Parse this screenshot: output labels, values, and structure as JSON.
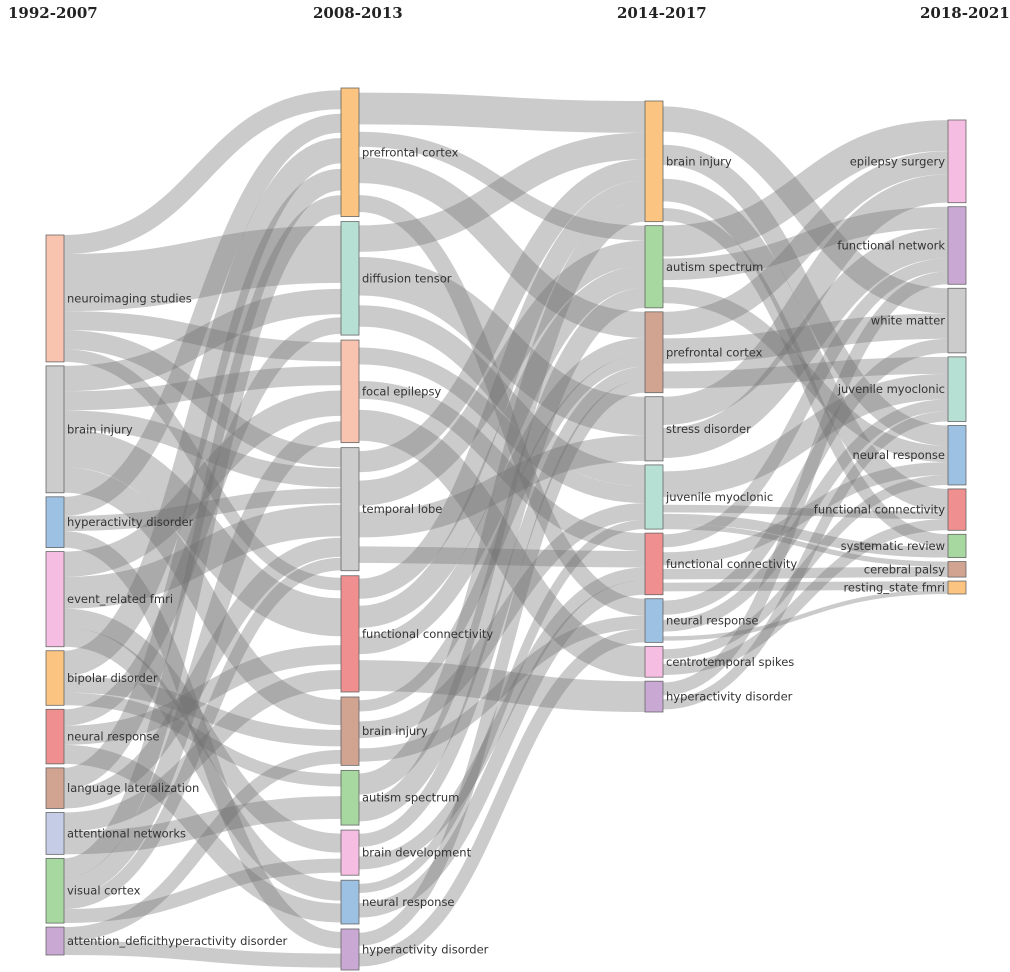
{
  "columns": [
    {
      "period": "1992-2007",
      "nodes": [
        {
          "id": "c0_neuroimaging_studies",
          "label": "neuroimaging studies",
          "size": 10,
          "color": "#f8c4b0"
        },
        {
          "id": "c0_brain_injury",
          "label": "brain injury",
          "size": 10,
          "color": "#cccccc"
        },
        {
          "id": "c0_hyperactivity_disorder",
          "label": "hyperactivity disorder",
          "size": 4,
          "color": "#9cc1e2"
        },
        {
          "id": "c0_event_related_fmri",
          "label": "event_related fmri",
          "size": 7.5,
          "color": "#f6bde2"
        },
        {
          "id": "c0_bipolar_disorder",
          "label": "bipolar disorder",
          "size": 4.3,
          "color": "#fbc480"
        },
        {
          "id": "c0_neural_response",
          "label": "neural response",
          "size": 4.3,
          "color": "#ef8f8f"
        },
        {
          "id": "c0_language_lateralization",
          "label": "language lateralization",
          "size": 3.2,
          "color": "#d1a391"
        },
        {
          "id": "c0_attentional_networks",
          "label": "attentional networks",
          "size": 3.3,
          "color": "#c4cde5"
        },
        {
          "id": "c0_visual_cortex",
          "label": "visual cortex",
          "size": 5.1,
          "color": "#a6d8a0"
        },
        {
          "id": "c0_adhd",
          "label": "attention_deficithyperactivity disorder",
          "size": 2.2,
          "color": "#c9a9d4"
        }
      ]
    },
    {
      "period": "2008-2013",
      "nodes": [
        {
          "id": "c1_prefrontal_cortex",
          "label": "prefrontal cortex",
          "size": 9.4,
          "color": "#fbc480"
        },
        {
          "id": "c1_diffusion_tensor",
          "label": "diffusion tensor",
          "size": 8.3,
          "color": "#b6e0d3"
        },
        {
          "id": "c1_focal_epilepsy",
          "label": "focal epilepsy",
          "size": 7.5,
          "color": "#f8c4b0"
        },
        {
          "id": "c1_temporal_lobe",
          "label": "temporal lobe",
          "size": 9,
          "color": "#cccccc"
        },
        {
          "id": "c1_functional_connectivity",
          "label": "functional connectivity",
          "size": 8.5,
          "color": "#ef8f8f"
        },
        {
          "id": "c1_brain_injury",
          "label": "brain injury",
          "size": 5,
          "color": "#d1a391"
        },
        {
          "id": "c1_autism_spectrum",
          "label": "autism spectrum",
          "size": 4,
          "color": "#a6d8a0"
        },
        {
          "id": "c1_brain_development",
          "label": "brain development",
          "size": 3.3,
          "color": "#f6bde2"
        },
        {
          "id": "c1_neural_response",
          "label": "neural response",
          "size": 3.2,
          "color": "#9cc1e2"
        },
        {
          "id": "c1_hyperactivity_disorder",
          "label": "hyperactivity disorder",
          "size": 3,
          "color": "#c9a9d4"
        }
      ]
    },
    {
      "period": "2014-2017",
      "nodes": [
        {
          "id": "c2_brain_injury",
          "label": "brain injury",
          "size": 9.4,
          "color": "#fbc480"
        },
        {
          "id": "c2_autism_spectrum",
          "label": "autism spectrum",
          "size": 6.4,
          "color": "#a6d8a0"
        },
        {
          "id": "c2_prefrontal_cortex",
          "label": "prefrontal cortex",
          "size": 6.3,
          "color": "#d1a391"
        },
        {
          "id": "c2_stress_disorder",
          "label": "stress disorder",
          "size": 5,
          "color": "#cccccc"
        },
        {
          "id": "c2_juvenile_myoclonic",
          "label": "juvenile myoclonic",
          "size": 5,
          "color": "#b6e0d3"
        },
        {
          "id": "c2_functional_connectivity",
          "label": "functional connectivity",
          "size": 4.8,
          "color": "#ef8f8f"
        },
        {
          "id": "c2_neural_response",
          "label": "neural response",
          "size": 3.4,
          "color": "#9cc1e2"
        },
        {
          "id": "c2_centrotemporal_spikes",
          "label": "centrotemporal spikes",
          "size": 2.4,
          "color": "#f6bde2"
        },
        {
          "id": "c2_hyperactivity_disorder",
          "label": "hyperactivity disorder",
          "size": 2.4,
          "color": "#c9a9d4"
        }
      ]
    },
    {
      "period": "2018-2021",
      "nodes": [
        {
          "id": "c3_epilepsy_surgery",
          "label": "epilepsy surgery",
          "size": 6.4,
          "color": "#f6bde2"
        },
        {
          "id": "c3_functional_network",
          "label": "functional network",
          "size": 6,
          "color": "#c9a9d4"
        },
        {
          "id": "c3_white_matter",
          "label": "white matter",
          "size": 5,
          "color": "#cccccc"
        },
        {
          "id": "c3_juvenile_myoclonic",
          "label": "juvenile myoclonic",
          "size": 5,
          "color": "#b6e0d3"
        },
        {
          "id": "c3_neural_response",
          "label": "neural response",
          "size": 4.6,
          "color": "#9cc1e2"
        },
        {
          "id": "c3_functional_connectivity",
          "label": "functional connectivity",
          "size": 3.2,
          "color": "#ef8f8f"
        },
        {
          "id": "c3_systematic_review",
          "label": "systematic review",
          "size": 1.8,
          "color": "#a6d8a0"
        },
        {
          "id": "c3_cerebral_palsy",
          "label": "cerebral palsy",
          "size": 1.2,
          "color": "#d1a391"
        },
        {
          "id": "c3_resting_state_fmri",
          "label": "resting_state fmri",
          "size": 1,
          "color": "#fbc480"
        }
      ]
    }
  ],
  "links": [
    {
      "source": "c0_neuroimaging_studies",
      "target": "c1_diffusion_tensor",
      "value": 4.5
    },
    {
      "source": "c0_neuroimaging_studies",
      "target": "c1_prefrontal_cortex",
      "value": 1.5
    },
    {
      "source": "c0_neuroimaging_studies",
      "target": "c1_focal_epilepsy",
      "value": 1.5
    },
    {
      "source": "c0_neuroimaging_studies",
      "target": "c1_temporal_lobe",
      "value": 1.5
    },
    {
      "source": "c0_neuroimaging_studies",
      "target": "c1_functional_connectivity",
      "value": 1
    },
    {
      "source": "c0_brain_injury",
      "target": "c1_diffusion_tensor",
      "value": 2
    },
    {
      "source": "c0_brain_injury",
      "target": "c1_focal_epilepsy",
      "value": 1.5
    },
    {
      "source": "c0_brain_injury",
      "target": "c1_functional_connectivity",
      "value": 3
    },
    {
      "source": "c0_brain_injury",
      "target": "c1_brain_injury",
      "value": 2
    },
    {
      "source": "c0_brain_injury",
      "target": "c1_temporal_lobe",
      "value": 1.5
    },
    {
      "source": "c0_hyperactivity_disorder",
      "target": "c1_prefrontal_cortex",
      "value": 1.5
    },
    {
      "source": "c0_hyperactivity_disorder",
      "target": "c1_temporal_lobe",
      "value": 1.2
    },
    {
      "source": "c0_hyperactivity_disorder",
      "target": "c1_hyperactivity_disorder",
      "value": 1.3
    },
    {
      "source": "c0_event_related_fmri",
      "target": "c1_focal_epilepsy",
      "value": 2
    },
    {
      "source": "c0_event_related_fmri",
      "target": "c1_temporal_lobe",
      "value": 2.5
    },
    {
      "source": "c0_event_related_fmri",
      "target": "c1_brain_development",
      "value": 1.5
    },
    {
      "source": "c0_event_related_fmri",
      "target": "c1_neural_response",
      "value": 1.5
    },
    {
      "source": "c0_bipolar_disorder",
      "target": "c1_prefrontal_cortex",
      "value": 2
    },
    {
      "source": "c0_bipolar_disorder",
      "target": "c1_brain_injury",
      "value": 1.3
    },
    {
      "source": "c0_bipolar_disorder",
      "target": "c1_autism_spectrum",
      "value": 1
    },
    {
      "source": "c0_neural_response",
      "target": "c1_functional_connectivity",
      "value": 1.5
    },
    {
      "source": "c0_neural_response",
      "target": "c1_diffusion_tensor",
      "value": 1.3
    },
    {
      "source": "c0_neural_response",
      "target": "c1_neural_response",
      "value": 1.5
    },
    {
      "source": "c0_language_lateralization",
      "target": "c1_temporal_lobe",
      "value": 1.5
    },
    {
      "source": "c0_language_lateralization",
      "target": "c1_prefrontal_cortex",
      "value": 1.7
    },
    {
      "source": "c0_attentional_networks",
      "target": "c1_functional_connectivity",
      "value": 1.5
    },
    {
      "source": "c0_attentional_networks",
      "target": "c1_autism_spectrum",
      "value": 1.8
    },
    {
      "source": "c0_visual_cortex",
      "target": "c1_prefrontal_cortex",
      "value": 1.5
    },
    {
      "source": "c0_visual_cortex",
      "target": "c1_focal_epilepsy",
      "value": 1.5
    },
    {
      "source": "c0_visual_cortex",
      "target": "c1_temporal_lobe",
      "value": 1
    },
    {
      "source": "c0_visual_cortex",
      "target": "c1_brain_development",
      "value": 1.1
    },
    {
      "source": "c0_adhd",
      "target": "c1_hyperactivity_disorder",
      "value": 1.1
    },
    {
      "source": "c0_adhd",
      "target": "c1_brain_injury",
      "value": 1.1
    },
    {
      "source": "c1_prefrontal_cortex",
      "target": "c2_brain_injury",
      "value": 3
    },
    {
      "source": "c1_prefrontal_cortex",
      "target": "c2_prefrontal_cortex",
      "value": 3
    },
    {
      "source": "c1_prefrontal_cortex",
      "target": "c2_autism_spectrum",
      "value": 1.5
    },
    {
      "source": "c1_prefrontal_cortex",
      "target": "c2_neural_response",
      "value": 1.9
    },
    {
      "source": "c1_diffusion_tensor",
      "target": "c2_brain_injury",
      "value": 2.5
    },
    {
      "source": "c1_diffusion_tensor",
      "target": "c2_stress_disorder",
      "value": 3
    },
    {
      "source": "c1_diffusion_tensor",
      "target": "c2_juvenile_myoclonic",
      "value": 2.8
    },
    {
      "source": "c1_focal_epilepsy",
      "target": "c2_juvenile_myoclonic",
      "value": 2.2
    },
    {
      "source": "c1_focal_epilepsy",
      "target": "c2_functional_connectivity",
      "value": 2.5
    },
    {
      "source": "c1_focal_epilepsy",
      "target": "c2_centrotemporal_spikes",
      "value": 2.4
    },
    {
      "source": "c1_temporal_lobe",
      "target": "c2_brain_injury",
      "value": 2
    },
    {
      "source": "c1_temporal_lobe",
      "target": "c2_stress_disorder",
      "value": 2
    },
    {
      "source": "c1_temporal_lobe",
      "target": "c2_autism_spectrum",
      "value": 2.5
    },
    {
      "source": "c1_temporal_lobe",
      "target": "c2_functional_connectivity",
      "value": 2.3
    },
    {
      "source": "c1_functional_connectivity",
      "target": "c2_brain_injury",
      "value": 1.9
    },
    {
      "source": "c1_functional_connectivity",
      "target": "c2_prefrontal_cortex",
      "value": 2
    },
    {
      "source": "c1_functional_connectivity",
      "target": "c2_hyperactivity_disorder",
      "value": 2.4
    },
    {
      "source": "c1_functional_connectivity",
      "target": "c2_autism_spectrum",
      "value": 2.2
    },
    {
      "source": "c1_brain_injury",
      "target": "c2_prefrontal_cortex",
      "value": 1.3
    },
    {
      "source": "c1_brain_injury",
      "target": "c2_neural_response",
      "value": 1.5
    },
    {
      "source": "c1_brain_injury",
      "target": "c2_juvenile_myoclonic",
      "value": 2.2
    },
    {
      "source": "c1_autism_spectrum",
      "target": "c2_autism_spectrum",
      "value": 2
    },
    {
      "source": "c1_autism_spectrum",
      "target": "c2_brain_injury",
      "value": 2
    },
    {
      "source": "c1_brain_development",
      "target": "c2_prefrontal_cortex",
      "value": 1.5
    },
    {
      "source": "c1_brain_development",
      "target": "c2_functional_connectivity",
      "value": 1.8
    },
    {
      "source": "c1_neural_response",
      "target": "c2_juvenile_myoclonic",
      "value": 1.2
    },
    {
      "source": "c1_neural_response",
      "target": "c2_functional_connectivity",
      "value": 2
    },
    {
      "source": "c1_hyperactivity_disorder",
      "target": "c2_neural_response",
      "value": 1.5
    },
    {
      "source": "c1_hyperactivity_disorder",
      "target": "c2_prefrontal_cortex",
      "value": 1.5
    },
    {
      "source": "c2_brain_injury",
      "target": "c3_white_matter",
      "value": 2.5
    },
    {
      "source": "c2_brain_injury",
      "target": "c3_neural_response",
      "value": 2.5
    },
    {
      "source": "c2_brain_injury",
      "target": "c3_functional_connectivity",
      "value": 2.4
    },
    {
      "source": "c2_brain_injury",
      "target": "c3_systematic_review",
      "value": 1
    },
    {
      "source": "c2_autism_spectrum",
      "target": "c3_functional_network",
      "value": 2
    },
    {
      "source": "c2_autism_spectrum",
      "target": "c3_epilepsy_surgery",
      "value": 2.4
    },
    {
      "source": "c2_autism_spectrum",
      "target": "c3_neural_response",
      "value": 2
    },
    {
      "source": "c2_prefrontal_cortex",
      "target": "c3_white_matter",
      "value": 2.5
    },
    {
      "source": "c2_prefrontal_cortex",
      "target": "c3_juvenile_myoclonic",
      "value": 2
    },
    {
      "source": "c2_prefrontal_cortex",
      "target": "c3_epilepsy_surgery",
      "value": 1.8
    },
    {
      "source": "c2_stress_disorder",
      "target": "c3_epilepsy_surgery",
      "value": 2.2
    },
    {
      "source": "c2_stress_disorder",
      "target": "c3_functional_network",
      "value": 2.8
    },
    {
      "source": "c2_juvenile_myoclonic",
      "target": "c3_juvenile_myoclonic",
      "value": 3
    },
    {
      "source": "c2_juvenile_myoclonic",
      "target": "c3_functional_connectivity",
      "value": 0.8
    },
    {
      "source": "c2_juvenile_myoclonic",
      "target": "c3_systematic_review",
      "value": 0.8
    },
    {
      "source": "c2_juvenile_myoclonic",
      "target": "c3_cerebral_palsy",
      "value": 0.4
    },
    {
      "source": "c2_functional_connectivity",
      "target": "c3_functional_network",
      "value": 1.2
    },
    {
      "source": "c2_functional_connectivity",
      "target": "c3_neural_response",
      "value": 1.6
    },
    {
      "source": "c2_functional_connectivity",
      "target": "c3_cerebral_palsy",
      "value": 0.8
    },
    {
      "source": "c2_functional_connectivity",
      "target": "c3_resting_state_fmri",
      "value": 1.2
    },
    {
      "source": "c2_neural_response",
      "target": "c3_juvenile_myoclonic",
      "value": 1.4
    },
    {
      "source": "c2_neural_response",
      "target": "c3_white_matter",
      "value": 1.4
    },
    {
      "source": "c2_neural_response",
      "target": "c3_resting_state_fmri",
      "value": 0.6
    },
    {
      "source": "c2_centrotemporal_spikes",
      "target": "c3_functional_connectivity",
      "value": 1.2
    },
    {
      "source": "c2_centrotemporal_spikes",
      "target": "c3_neural_response",
      "value": 1.2
    },
    {
      "source": "c2_hyperactivity_disorder",
      "target": "c3_juvenile_myoclonic",
      "value": 1.2
    },
    {
      "source": "c2_hyperactivity_disorder",
      "target": "c3_functional_network",
      "value": 1.2
    }
  ]
}
